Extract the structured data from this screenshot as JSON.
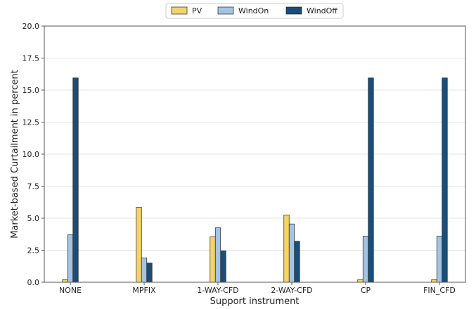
{
  "chart_data": {
    "type": "bar",
    "categories": [
      "NONE",
      "MPFIX",
      "1-WAY-CFD",
      "2-WAY-CFD",
      "CP",
      "FIN_CFD"
    ],
    "series": [
      {
        "name": "PV",
        "color": "#f5d36b",
        "values": [
          0.2,
          5.85,
          3.55,
          5.25,
          0.2,
          0.2
        ]
      },
      {
        "name": "WindOn",
        "color": "#a3c4e6",
        "values": [
          3.7,
          1.9,
          4.25,
          4.55,
          3.6,
          3.6
        ]
      },
      {
        "name": "WindOff",
        "color": "#1a4e7a",
        "values": [
          15.95,
          1.5,
          2.45,
          3.2,
          15.95,
          15.95
        ]
      }
    ],
    "xlabel": "Support instrument",
    "ylabel": "Market-based Curtailment in percent",
    "ylim": [
      0,
      20
    ],
    "yticks": [
      "0.0",
      "2.5",
      "5.0",
      "7.5",
      "10.0",
      "12.5",
      "15.0",
      "17.5",
      "20.0"
    ],
    "grid": "horizontal",
    "legend_position": "top-center"
  }
}
